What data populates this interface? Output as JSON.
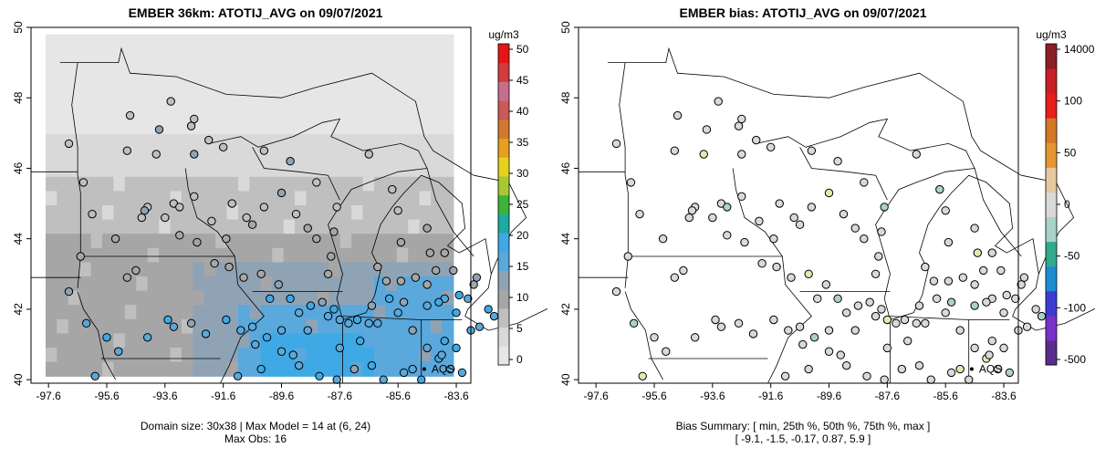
{
  "panels": [
    {
      "title": "EMBER 36km: ATOTIJ_AVG on 09/07/2021",
      "units": "ug/m3",
      "colorbar_ticks": [
        "0",
        "5",
        "10",
        "15",
        "20",
        "25",
        "30",
        "35",
        "40",
        "45",
        "50"
      ],
      "stats_lines": [
        "Domain size: 30x38 | Max Model = 14 at (6, 24)",
        "Max Obs: 16"
      ],
      "annotation": "AQS"
    },
    {
      "title": "EMBER bias: ATOTIJ_AVG on 09/07/2021",
      "units": "ug/m3",
      "colorbar_ticks": [
        "-500",
        "-100",
        "-50",
        "0",
        "50",
        "100",
        "14000"
      ],
      "stats_lines": [
        "Bias Summary: [ min, 25th %, 50th %, 75th %, max ]",
        "[ -9.1,   -1.5,   -0.17,   0.87,   5.9 ]"
      ],
      "annotation": "AQS"
    }
  ],
  "axes": {
    "lon_ticks": [
      "-97.6",
      "-95.6",
      "-93.6",
      "-91.6",
      "-89.6",
      "-87.6",
      "-85.6",
      "-83.6"
    ],
    "lat_ticks": [
      "40",
      "42",
      "44",
      "46",
      "48",
      "50"
    ]
  },
  "colors": {
    "conc_ramp": [
      "#e6e6e6",
      "#d9d9d9",
      "#bfbfbf",
      "#a6a6a6",
      "#8fa3b5",
      "#5aa8dc",
      "#3fa9e6",
      "#1fa9a0",
      "#3cb43c",
      "#a8c832",
      "#e6d21e",
      "#e6a01e",
      "#d2782d",
      "#c85a5a",
      "#c86e8c",
      "#d23c3c",
      "#e61414"
    ],
    "bias_ramp": [
      "#5a2d8c",
      "#7832c8",
      "#3c3cd2",
      "#1e8cd2",
      "#32aa8c",
      "#aad2c8",
      "#d9d9d9",
      "#e6c8a0",
      "#e69632",
      "#d27828",
      "#e61e1e",
      "#c81e28",
      "#8c1e28"
    ]
  }
}
